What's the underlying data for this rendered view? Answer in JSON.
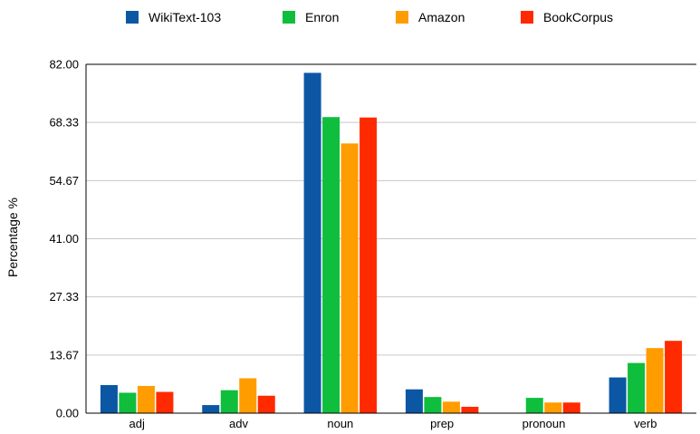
{
  "chart_data": {
    "type": "bar",
    "title": "",
    "xlabel": "",
    "ylabel": "Percentage %",
    "ylim": [
      0,
      82
    ],
    "yticks": [
      "0.00",
      "13.67",
      "27.33",
      "41.00",
      "54.67",
      "68.33",
      "82.00"
    ],
    "grid": true,
    "legend_position": "top",
    "categories": [
      "adj",
      "adv",
      "noun",
      "prep",
      "pronoun",
      "verb"
    ],
    "series": [
      {
        "name": "WikiText-103",
        "color": "#0b57a4",
        "values": [
          6.6,
          1.9,
          80.0,
          5.6,
          0.0,
          8.4
        ]
      },
      {
        "name": "Enron",
        "color": "#0fbe3c",
        "values": [
          4.8,
          5.4,
          69.6,
          3.8,
          3.6,
          11.8
        ]
      },
      {
        "name": "Amazon",
        "color": "#ff9c00",
        "values": [
          6.4,
          8.2,
          63.4,
          2.7,
          2.5,
          15.3
        ]
      },
      {
        "name": "BookCorpus",
        "color": "#ff2a00",
        "values": [
          5.0,
          4.1,
          69.5,
          1.5,
          2.5,
          17.0
        ]
      }
    ]
  }
}
